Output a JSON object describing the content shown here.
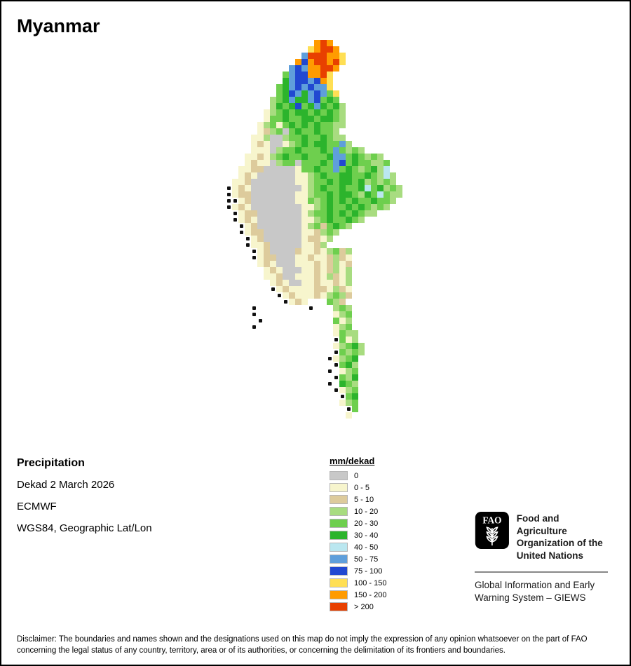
{
  "title": "Myanmar",
  "info": {
    "parameter": "Precipitation",
    "dekad": "Dekad 2 March 2026",
    "source": "ECMWF",
    "projection": "WGS84, Geographic Lat/Lon"
  },
  "legend": {
    "title": "mm/dekad",
    "items": [
      {
        "label": "0",
        "color": "#c8c8c8"
      },
      {
        "label": "0 - 5",
        "color": "#f7f5cd"
      },
      {
        "label": "5 - 10",
        "color": "#ddcb9c"
      },
      {
        "label": "10 - 20",
        "color": "#a8dc80"
      },
      {
        "label": "20 - 30",
        "color": "#6ecf4e"
      },
      {
        "label": "30 - 40",
        "color": "#2cb42c"
      },
      {
        "label": "40 - 50",
        "color": "#bae7f0"
      },
      {
        "label": "50 - 75",
        "color": "#5f9fdb"
      },
      {
        "label": "75 - 100",
        "color": "#2148d1"
      },
      {
        "label": "100 - 150",
        "color": "#ffdf54"
      },
      {
        "label": "150 - 200",
        "color": "#ff9b00"
      },
      {
        "label": "> 200",
        "color": "#e84000"
      }
    ]
  },
  "map": {
    "palette": {
      "g": "#c8c8c8",
      "y": "#f7f5cd",
      "t": "#ddcb9c",
      "l": "#a8dc80",
      "m": "#6ecf4e",
      "G": "#2cb42c",
      "c": "#bae7f0",
      "b": "#5f9fdb",
      "B": "#2148d1",
      "Y": "#ffdf54",
      "o": "#ff9b00",
      "r": "#e84000",
      "k": "#111111"
    },
    "rows": [
      "..............oro...........",
      ".............Yorro..........",
      "............brrrooY.........",
      "...........oBorrorY.........",
      "..........bBboorro..........",
      ".........mbBBoorY...........",
      ".........GbBBbBoY...........",
      "........mGbBbBbbY...........",
      "........mGBbGbBbmY..........",
      ".......lmGbGGbBmGm..........",
      ".......lGmGBmGbGmGl.........",
      "......ylmGmGGmGmGml.........",
      "......ymmGmmGGmGGml.........",
      ".....ylmymGmGmGmmll.........",
      ".....ytlmgmGmmGmml..........",
      "....yylgglmmGmmGmll.........",
      "....ytyggylmGmGGmmbl........",
      "....yyyglmmGmmmGmbmlml......",
      "...yytylmGmmGmmmGbbmGmlml...",
      "...ytyyglmmgmmmGmbBmGmmllm..",
      "..yyttgggggymmGmmbmGmlmGlc..",
      "..ytyggggggyylmGmmGGmmGmlcl.",
      ".yytgggggggyylmmGmGGmGlmlml.",
      "kytyggggggggylmGmmGmmGcmGlml",
      "kyttgggggggyylmmGmGGmlGmcmll",
      "kkytgggggggyymlmGmGmGmmGmml.",
      "kytyggggggggyylmGmmGmGmlml..",
      ".kyttgggggggylmmGmGmGmll....",
      ".kytygggggggyylmGmmGml......",
      "..kytgggggggylmtmGml........",
      "..kyttggggggyytlml..........",
      "...kytggggggyttyl...........",
      "...kyytgggggyytl............",
      "....kytggggtyytylmtl........",
      "....kyttgggyytyytlty........",
      ".....ytygggyyytytlyt........",
      "......ytygggyytytlyl........",
      "......yytggyyytyltyl........",
      ".......ytyggyytyytyl........",
      ".......kytyyyyttylty........",
      "........kytyyytylmlt........",
      ".........kyty...mlt.........",
      "....k........k...lml........",
      "....k............ylm........",
      ".....k...........myl........",
      "....k............ylm........",
      ".................ymll.......",
      ".................kmyl.......",
      ".................ylmGl......",
      ".................kmlml......",
      "................kylmG.......",
      ".................kmGl.......",
      "................k.ylm.......",
      ".................kmlG.......",
      "................k.Gml.......",
      ".................kylm.......",
      "..................kmG.......",
      "..................ylm.......",
      "...................km.......",
      "...................y........"
    ]
  },
  "fao": {
    "logo_label": "FAO",
    "org_lines": [
      "Food and Agriculture",
      "Organization of the",
      "United Nations"
    ],
    "giews_lines": [
      "Global Information and Early",
      "Warning System – GIEWS"
    ]
  },
  "disclaimer": "Disclaimer: The boundaries and names shown and the designations used on this map do not imply the expression of any opinion whatsoever on the part of FAO concerning the legal status of any country, territory, area or of its authorities, or concerning the delimitation of its frontiers and boundaries."
}
